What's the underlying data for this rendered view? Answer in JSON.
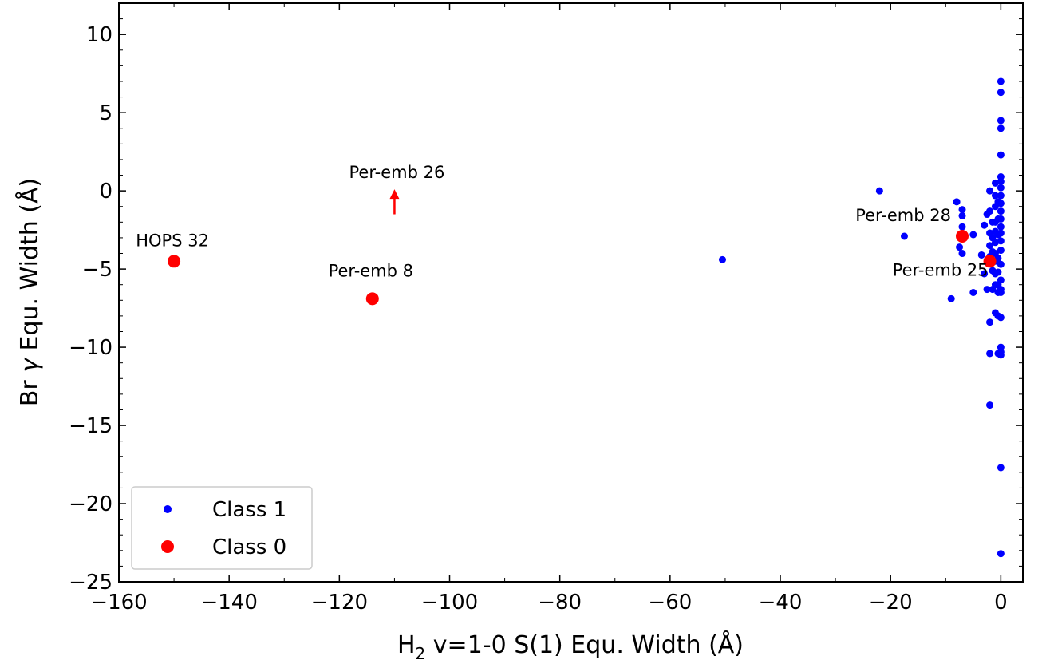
{
  "chart_data": {
    "type": "scatter",
    "xlabel": {
      "main": "H",
      "sub": "2",
      "rest": " v=1-0 S(1) Equ. Width (Å)"
    },
    "ylabel": {
      "pre": "Br ",
      "greek": "γ",
      "post": " Equ. Width (Å)"
    },
    "xlim": [
      -160,
      4
    ],
    "ylim": [
      -25,
      12
    ],
    "x_ticks": [
      -160,
      -140,
      -120,
      -100,
      -80,
      -60,
      -40,
      -20,
      0
    ],
    "y_ticks": [
      10,
      5,
      0,
      -5,
      -10,
      -15,
      -20,
      -25
    ],
    "x_tick_labels": [
      "−160",
      "−140",
      "−120",
      "−100",
      "−80",
      "−60",
      "−40",
      "−20",
      "0"
    ],
    "y_tick_labels": [
      "10",
      "5",
      "0",
      "−5",
      "−10",
      "−15",
      "−20",
      "−25"
    ],
    "legend": {
      "position": "lower-left",
      "entries": [
        {
          "label": "Class 1",
          "color": "#0000ff"
        },
        {
          "label": "Class 0",
          "color": "#ff0000"
        }
      ]
    },
    "series": [
      {
        "name": "Class 1",
        "color": "#0000ff",
        "marker_size": "small",
        "points": [
          [
            0,
            7.0
          ],
          [
            0,
            6.3
          ],
          [
            0,
            4.5
          ],
          [
            0,
            4.0
          ],
          [
            0,
            2.3
          ],
          [
            0,
            0.9
          ],
          [
            0,
            0.6
          ],
          [
            0,
            0.2
          ],
          [
            0,
            -0.3
          ],
          [
            0,
            -0.8
          ],
          [
            0,
            -1.3
          ],
          [
            0,
            -1.8
          ],
          [
            0,
            -2.3
          ],
          [
            0,
            -2.7
          ],
          [
            0,
            -3.2
          ],
          [
            0,
            -3.8
          ],
          [
            0,
            -4.7
          ],
          [
            0,
            -5.7
          ],
          [
            0,
            -6.3
          ],
          [
            0,
            -6.5
          ],
          [
            0,
            -8.1
          ],
          [
            0,
            -10.0
          ],
          [
            0,
            -10.3
          ],
          [
            0,
            -10.5
          ],
          [
            0,
            -17.7
          ],
          [
            0,
            -23.2
          ],
          [
            -0.5,
            -0.7
          ],
          [
            -0.5,
            -1.8
          ],
          [
            -0.5,
            -2.8
          ],
          [
            -0.5,
            -4.3
          ],
          [
            -0.5,
            -5.2
          ],
          [
            -0.5,
            -6.0
          ],
          [
            -0.5,
            -6.5
          ],
          [
            -0.5,
            -8.0
          ],
          [
            -0.5,
            -10.4
          ],
          [
            -1.0,
            0.5
          ],
          [
            -1.0,
            -0.3
          ],
          [
            -1.0,
            -1.0
          ],
          [
            -1.0,
            -2.0
          ],
          [
            -1.0,
            -2.6
          ],
          [
            -1.0,
            -3.3
          ],
          [
            -1.0,
            -4.0
          ],
          [
            -1.0,
            -4.5
          ],
          [
            -1.0,
            -5.3
          ],
          [
            -1.0,
            -6.0
          ],
          [
            -1.0,
            -7.8
          ],
          [
            -1.5,
            -2.0
          ],
          [
            -1.5,
            -3.0
          ],
          [
            -1.5,
            -3.9
          ],
          [
            -1.5,
            -5.1
          ],
          [
            -1.5,
            -6.3
          ],
          [
            -2.0,
            0.0
          ],
          [
            -2.0,
            -1.3
          ],
          [
            -2.0,
            -2.7
          ],
          [
            -2.0,
            -3.5
          ],
          [
            -2.0,
            -4.2
          ],
          [
            -2.0,
            -8.4
          ],
          [
            -2.0,
            -10.4
          ],
          [
            -2.0,
            -13.7
          ],
          [
            -2.5,
            -1.5
          ],
          [
            -2.5,
            -6.3
          ],
          [
            -3.0,
            -2.2
          ],
          [
            -3.0,
            -5.3
          ],
          [
            -3.5,
            -4.1
          ],
          [
            -5.0,
            -2.8
          ],
          [
            -5.0,
            -6.5
          ],
          [
            -7.0,
            -1.2
          ],
          [
            -7.0,
            -1.6
          ],
          [
            -7.0,
            -2.3
          ],
          [
            -7.0,
            -4.0
          ],
          [
            -7.5,
            -3.6
          ],
          [
            -8.0,
            -0.7
          ],
          [
            -9.0,
            -6.9
          ],
          [
            -17.5,
            -2.9
          ],
          [
            -22.0,
            0.0
          ],
          [
            -50.5,
            -4.4
          ]
        ]
      },
      {
        "name": "Class 0",
        "color": "#ff0000",
        "marker_size": "large",
        "points": [
          {
            "x": -150,
            "y": -4.5,
            "label": "HOPS 32"
          },
          {
            "x": -114,
            "y": -6.9,
            "label": "Per-emb 8"
          },
          {
            "x": -7,
            "y": -2.9,
            "label": "Per-emb 28"
          },
          {
            "x": -2,
            "y": -4.5,
            "label": "Per-emb 25"
          }
        ],
        "lower_limits": [
          {
            "x": -110,
            "y": -1.5,
            "y_to": 0.1,
            "label": "Per-emb 26"
          }
        ]
      }
    ]
  }
}
